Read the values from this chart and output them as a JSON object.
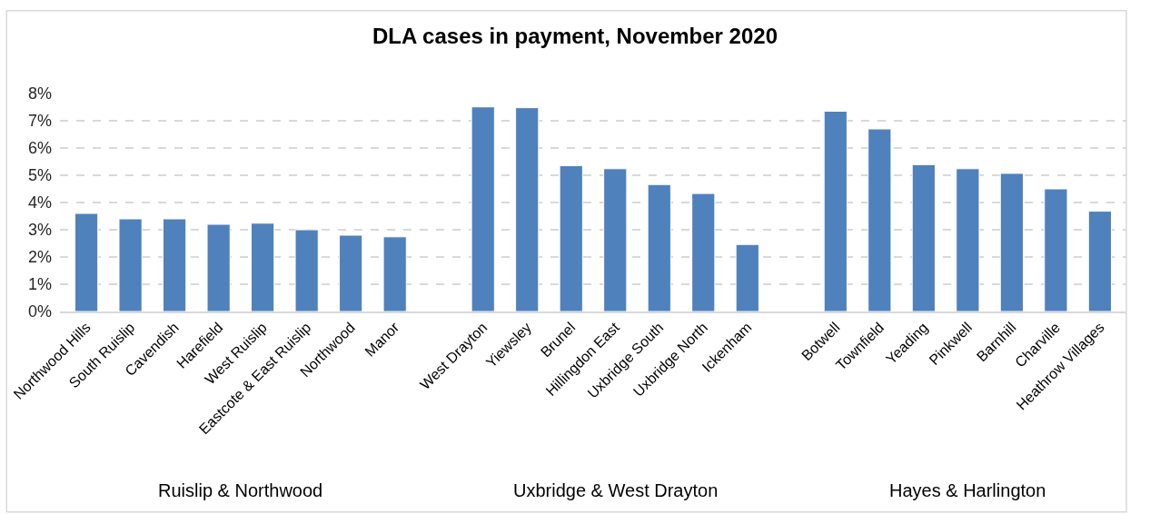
{
  "chart_data": {
    "type": "bar",
    "title": "DLA cases in payment, November 2020",
    "categories": [
      "Northwood Hills",
      "South Ruislip",
      "Cavendish",
      "Harefield",
      "West Ruislip",
      "Eastcote & East Ruislip",
      "Northwood",
      "Manor",
      null,
      "West Drayton",
      "Yiewsley",
      "Brunel",
      "Hillingdon East",
      "Uxbridge South",
      "Uxbridge North",
      "Ickenham",
      null,
      "Botwell",
      "Townfield",
      "Yeading",
      "Pinkwell",
      "Barnhill",
      "Charville",
      "Heathrow Villages"
    ],
    "values": [
      3.6,
      3.4,
      3.4,
      3.2,
      3.24,
      3.0,
      2.8,
      2.74,
      null,
      7.51,
      7.48,
      5.35,
      5.24,
      4.66,
      4.33,
      2.46,
      null,
      7.35,
      6.7,
      5.39,
      5.24,
      5.07,
      4.5,
      3.68
    ],
    "color": "#4f81bd",
    "ylim": [
      0,
      8
    ],
    "yticks": [
      {
        "value": 0,
        "label": "0%"
      },
      {
        "value": 1,
        "label": "1%"
      },
      {
        "value": 2,
        "label": "2%"
      },
      {
        "value": 3,
        "label": "3%"
      },
      {
        "value": 4,
        "label": "4%"
      },
      {
        "value": 5,
        "label": "5%"
      },
      {
        "value": 6,
        "label": "6%"
      },
      {
        "value": 7,
        "label": "7%"
      },
      {
        "value": 8,
        "label": "8%"
      }
    ],
    "grid": "y",
    "legend": false,
    "annotations": [
      "Ruislip & Northwood",
      "Uxbridge & West Drayton",
      "Hayes & Harlington"
    ]
  }
}
